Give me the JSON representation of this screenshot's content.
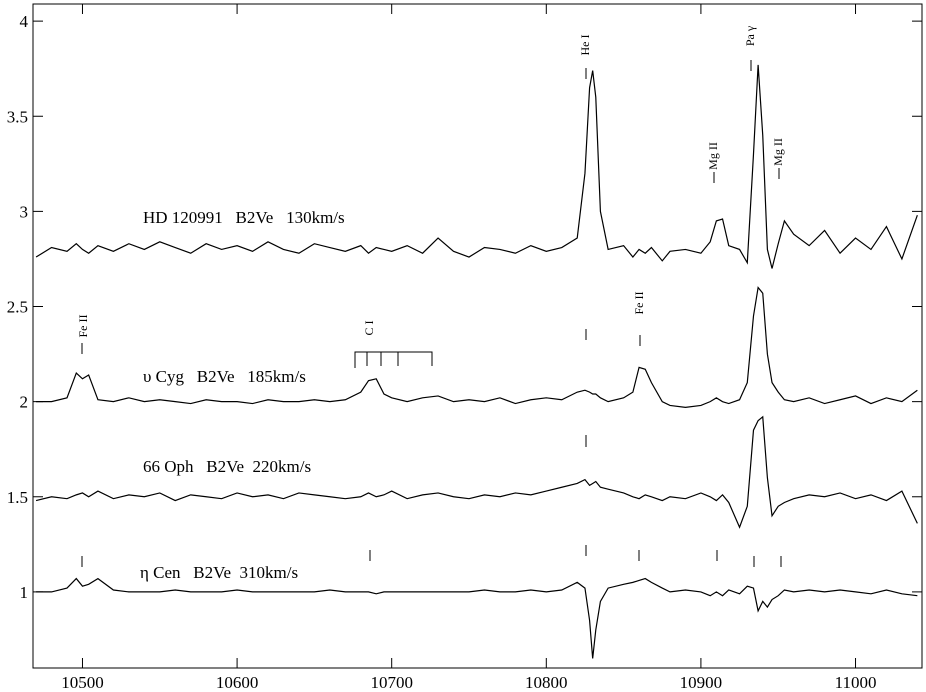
{
  "chart_data": {
    "type": "line",
    "xlim": [
      10468,
      11043
    ],
    "ylim": [
      0.6,
      4.09
    ],
    "xticks": [
      10500,
      10600,
      10700,
      10800,
      10900,
      11000
    ],
    "yticks": [
      1,
      1.5,
      2,
      2.5,
      3,
      3.5,
      4
    ],
    "grid": false,
    "labels": [
      "HD 120991   B2Ve   130km/s",
      "υ Cyg   B2Ve   185km/s",
      "66 Oph   B2Ve  220km/s",
      "η Cen   B2Ve  310km/s"
    ],
    "line_labels": [
      "He I",
      "Pa γ",
      "Mg II",
      "Mg II",
      "Fe II",
      "C I",
      "Fe II"
    ],
    "x": [
      10470,
      10480,
      10490,
      10496,
      10500,
      10504,
      10510,
      10520,
      10530,
      10540,
      10550,
      10560,
      10570,
      10580,
      10590,
      10600,
      10610,
      10620,
      10630,
      10640,
      10650,
      10660,
      10670,
      10680,
      10685,
      10690,
      10695,
      10700,
      10710,
      10720,
      10730,
      10740,
      10750,
      10760,
      10770,
      10780,
      10790,
      10800,
      10810,
      10820,
      10825,
      10828,
      10830,
      10832,
      10835,
      10840,
      10850,
      10856,
      10860,
      10864,
      10868,
      10875,
      10880,
      10890,
      10900,
      10906,
      10910,
      10914,
      10918,
      10925,
      10930,
      10934,
      10937,
      10940,
      10943,
      10946,
      10950,
      10954,
      10960,
      10970,
      10980,
      10990,
      11000,
      11010,
      11020,
      11030,
      11040
    ],
    "series": [
      {
        "color": "#000000",
        "values": [
          2.76,
          2.81,
          2.79,
          2.83,
          2.8,
          2.78,
          2.82,
          2.79,
          2.83,
          2.8,
          2.84,
          2.81,
          2.78,
          2.83,
          2.8,
          2.82,
          2.79,
          2.84,
          2.8,
          2.78,
          2.83,
          2.81,
          2.79,
          2.82,
          2.78,
          2.81,
          2.8,
          2.79,
          2.82,
          2.78,
          2.86,
          2.79,
          2.76,
          2.81,
          2.8,
          2.78,
          2.82,
          2.79,
          2.81,
          2.86,
          3.2,
          3.65,
          3.74,
          3.6,
          3.0,
          2.8,
          2.82,
          2.76,
          2.8,
          2.78,
          2.81,
          2.74,
          2.79,
          2.8,
          2.78,
          2.84,
          2.95,
          2.96,
          2.82,
          2.8,
          2.73,
          3.3,
          3.77,
          3.4,
          2.8,
          2.7,
          2.83,
          2.95,
          2.88,
          2.82,
          2.9,
          2.78,
          2.86,
          2.8,
          2.92,
          2.75,
          2.98
        ]
      },
      {
        "color": "#000000",
        "values": [
          2.0,
          2.0,
          2.02,
          2.15,
          2.12,
          2.14,
          2.01,
          2.0,
          2.02,
          2.0,
          2.01,
          2.0,
          1.99,
          2.01,
          2.0,
          2.0,
          1.99,
          2.01,
          2.0,
          2.0,
          2.01,
          2.0,
          2.01,
          2.05,
          2.11,
          2.12,
          2.04,
          2.02,
          2.0,
          2.02,
          2.03,
          2.0,
          2.01,
          2.0,
          2.02,
          1.99,
          2.01,
          2.02,
          2.01,
          2.05,
          2.06,
          2.05,
          2.04,
          2.04,
          2.02,
          2.0,
          2.02,
          2.05,
          2.18,
          2.17,
          2.1,
          2.0,
          1.98,
          1.97,
          1.98,
          2.0,
          2.02,
          2.0,
          1.99,
          2.01,
          2.1,
          2.45,
          2.6,
          2.57,
          2.25,
          2.1,
          2.05,
          2.01,
          2.0,
          2.02,
          1.99,
          2.01,
          2.03,
          1.99,
          2.02,
          2.0,
          2.06
        ]
      },
      {
        "color": "#000000",
        "values": [
          1.48,
          1.5,
          1.49,
          1.51,
          1.52,
          1.5,
          1.53,
          1.49,
          1.51,
          1.5,
          1.52,
          1.48,
          1.51,
          1.5,
          1.49,
          1.52,
          1.5,
          1.51,
          1.49,
          1.52,
          1.51,
          1.5,
          1.49,
          1.5,
          1.52,
          1.5,
          1.51,
          1.53,
          1.49,
          1.51,
          1.52,
          1.5,
          1.49,
          1.51,
          1.5,
          1.52,
          1.51,
          1.53,
          1.55,
          1.57,
          1.59,
          1.56,
          1.57,
          1.58,
          1.55,
          1.54,
          1.52,
          1.5,
          1.49,
          1.51,
          1.5,
          1.48,
          1.5,
          1.49,
          1.52,
          1.5,
          1.48,
          1.51,
          1.47,
          1.34,
          1.45,
          1.85,
          1.9,
          1.92,
          1.6,
          1.4,
          1.45,
          1.47,
          1.49,
          1.51,
          1.5,
          1.52,
          1.49,
          1.51,
          1.48,
          1.53,
          1.36
        ]
      },
      {
        "color": "#000000",
        "values": [
          1.0,
          1.0,
          1.02,
          1.07,
          1.03,
          1.04,
          1.07,
          1.01,
          1.0,
          1.0,
          1.0,
          1.01,
          1.0,
          1.0,
          1.0,
          1.01,
          1.0,
          1.0,
          1.0,
          1.0,
          1.0,
          1.01,
          1.0,
          1.0,
          1.0,
          0.99,
          1.0,
          1.0,
          1.0,
          1.0,
          1.0,
          1.0,
          1.0,
          1.01,
          1.0,
          1.0,
          1.01,
          1.0,
          1.01,
          1.05,
          1.02,
          0.85,
          0.65,
          0.8,
          0.95,
          1.02,
          1.04,
          1.05,
          1.06,
          1.07,
          1.05,
          1.02,
          1.0,
          1.01,
          1.0,
          0.98,
          1.0,
          0.98,
          1.01,
          0.99,
          1.03,
          1.02,
          0.9,
          0.95,
          0.92,
          0.96,
          0.98,
          1.01,
          1.0,
          1.01,
          1.0,
          1.01,
          1.0,
          0.99,
          1.01,
          0.99,
          0.98
        ]
      }
    ]
  }
}
